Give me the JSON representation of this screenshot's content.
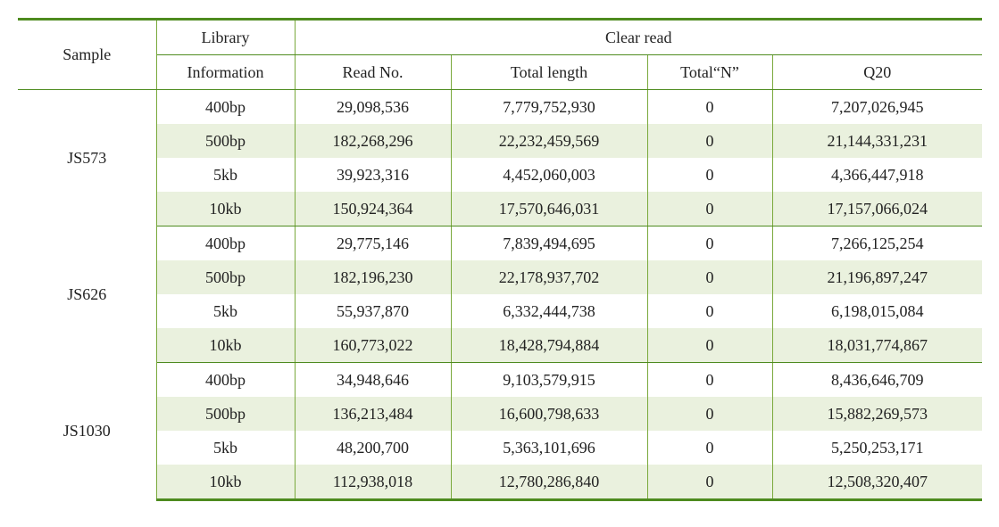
{
  "table": {
    "header": {
      "sample": "Sample",
      "library": "Library",
      "library_sub": "Information",
      "clear_read": "Clear read",
      "read_no": "Read No.",
      "total_length": "Total length",
      "total_n": "Total“N”",
      "q20": "Q20"
    },
    "columns": {
      "sample_width": 155,
      "library_width": 155,
      "read_width": 175,
      "length_width": 220,
      "n_width": 140,
      "q20_width": 235
    },
    "styling": {
      "border_color": "#7aa93c",
      "heavy_border_color": "#4e8b1f",
      "stripe_color": "#eaf1de",
      "background_color": "#ffffff",
      "font_family": "Times New Roman / Batang serif",
      "font_size_pt": 14
    },
    "samples": [
      {
        "name": "JS573",
        "rows": [
          {
            "lib": "400bp",
            "read_no": "29,098,536",
            "total_length": "7,779,752,930",
            "total_n": "0",
            "q20": "7,207,026,945",
            "stripe": false
          },
          {
            "lib": "500bp",
            "read_no": "182,268,296",
            "total_length": "22,232,459,569",
            "total_n": "0",
            "q20": "21,144,331,231",
            "stripe": true
          },
          {
            "lib": "5kb",
            "read_no": "39,923,316",
            "total_length": "4,452,060,003",
            "total_n": "0",
            "q20": "4,366,447,918",
            "stripe": false
          },
          {
            "lib": "10kb",
            "read_no": "150,924,364",
            "total_length": "17,570,646,031",
            "total_n": "0",
            "q20": "17,157,066,024",
            "stripe": true
          }
        ]
      },
      {
        "name": "JS626",
        "rows": [
          {
            "lib": "400bp",
            "read_no": "29,775,146",
            "total_length": "7,839,494,695",
            "total_n": "0",
            "q20": "7,266,125,254",
            "stripe": false
          },
          {
            "lib": "500bp",
            "read_no": "182,196,230",
            "total_length": "22,178,937,702",
            "total_n": "0",
            "q20": "21,196,897,247",
            "stripe": true
          },
          {
            "lib": "5kb",
            "read_no": "55,937,870",
            "total_length": "6,332,444,738",
            "total_n": "0",
            "q20": "6,198,015,084",
            "stripe": false
          },
          {
            "lib": "10kb",
            "read_no": "160,773,022",
            "total_length": "18,428,794,884",
            "total_n": "0",
            "q20": "18,031,774,867",
            "stripe": true
          }
        ]
      },
      {
        "name": "JS1030",
        "rows": [
          {
            "lib": "400bp",
            "read_no": "34,948,646",
            "total_length": "9,103,579,915",
            "total_n": "0",
            "q20": "8,436,646,709",
            "stripe": false
          },
          {
            "lib": "500bp",
            "read_no": "136,213,484",
            "total_length": "16,600,798,633",
            "total_n": "0",
            "q20": "15,882,269,573",
            "stripe": true
          },
          {
            "lib": "5kb",
            "read_no": "48,200,700",
            "total_length": "5,363,101,696",
            "total_n": "0",
            "q20": "5,250,253,171",
            "stripe": false
          },
          {
            "lib": "10kb",
            "read_no": "112,938,018",
            "total_length": "12,780,286,840",
            "total_n": "0",
            "q20": "12,508,320,407",
            "stripe": true
          }
        ]
      }
    ]
  }
}
